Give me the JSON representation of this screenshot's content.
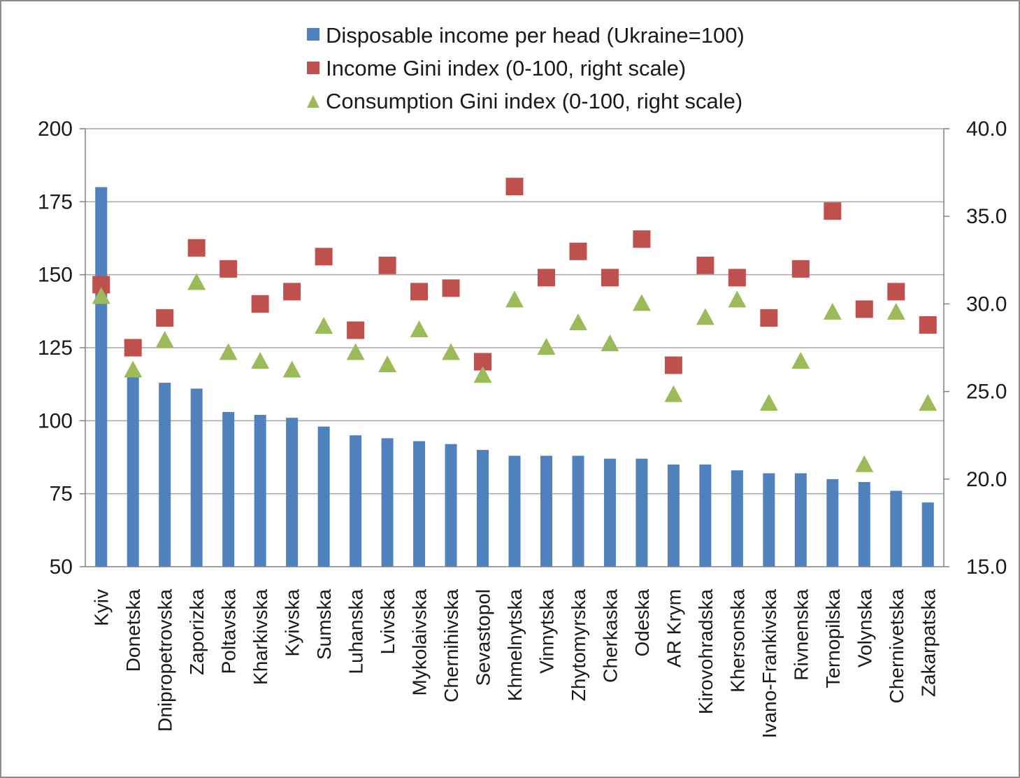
{
  "chart_data": {
    "type": "bar",
    "categories": [
      "Kyiv",
      "Donetska",
      "Dnipropetrovska",
      "Zaporizka",
      "Poltavska",
      "Kharkivska",
      "Kyivska",
      "Sumska",
      "Luhanska",
      "Lvivska",
      "Mykolaivska",
      "Chernihivska",
      "Sevastopol",
      "Khmelnytska",
      "Vinnytska",
      "Zhytomyrska",
      "Cherkaska",
      "Odeska",
      "AR Krym",
      "Kirovohradska",
      "Khersonska",
      "Ivano-Frankivska",
      "Rivnenska",
      "Ternopilska",
      "Volynska",
      "Chernivetska",
      "Zakarpatska"
    ],
    "series": [
      {
        "name": "Disposable income per head (Ukraine=100)",
        "kind": "bar",
        "axis": "left",
        "color": "#4f81bd",
        "values": [
          180,
          116,
          113,
          111,
          103,
          102,
          101,
          98,
          95,
          94,
          93,
          92,
          90,
          88,
          88,
          88,
          87,
          87,
          85,
          85,
          83,
          82,
          82,
          80,
          79,
          76,
          72
        ]
      },
      {
        "name": "Income Gini index (0-100, right scale)",
        "kind": "marker",
        "marker": "square",
        "axis": "right",
        "color": "#c0504d",
        "values": [
          31.1,
          27.5,
          29.2,
          33.2,
          32.0,
          30.0,
          30.7,
          32.7,
          28.5,
          32.2,
          30.7,
          30.9,
          26.7,
          36.7,
          31.5,
          33.0,
          31.5,
          33.7,
          26.5,
          32.2,
          31.5,
          29.2,
          32.0,
          35.3,
          29.7,
          30.7,
          28.8
        ]
      },
      {
        "name": "Consumption Gini index (0-100, right scale)",
        "kind": "marker",
        "marker": "triangle",
        "axis": "right",
        "color": "#9bbb59",
        "values": [
          30.4,
          26.2,
          27.9,
          31.2,
          27.2,
          26.7,
          26.2,
          28.7,
          27.2,
          26.5,
          28.5,
          27.2,
          25.9,
          30.2,
          27.5,
          28.9,
          27.7,
          30.0,
          24.8,
          29.2,
          30.2,
          24.3,
          26.7,
          29.5,
          20.8,
          29.5,
          24.3
        ]
      }
    ],
    "y_left": {
      "min": 50,
      "max": 200,
      "ticks": [
        "50",
        "75",
        "100",
        "125",
        "150",
        "175",
        "200"
      ]
    },
    "y_right": {
      "min": 15,
      "max": 40,
      "ticks": [
        "15.0",
        "20.0",
        "25.0",
        "30.0",
        "35.0",
        "40.0"
      ]
    },
    "grid": true,
    "legend_position": "top-center"
  }
}
